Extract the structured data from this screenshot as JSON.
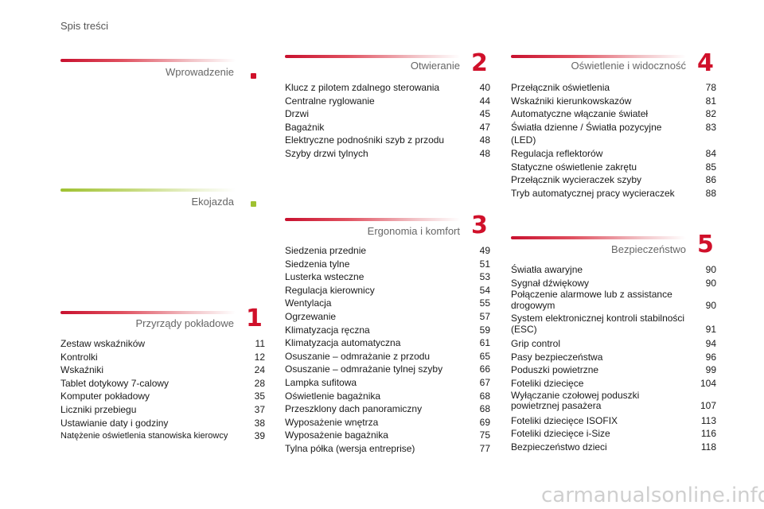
{
  "header": "Spis treści",
  "sections": {
    "intro": {
      "title": "Wprowadzenie"
    },
    "eco": {
      "title": "Ekojazda"
    },
    "s1": {
      "title": "Przyrządy pokładowe",
      "num": "1",
      "items": [
        {
          "t": "Zestaw wskaźników",
          "p": "11"
        },
        {
          "t": "Kontrolki",
          "p": "12"
        },
        {
          "t": "Wskaźniki",
          "p": "24"
        },
        {
          "t": "Tablet dotykowy 7-calowy",
          "p": "28"
        },
        {
          "t": "Komputer pokładowy",
          "p": "35"
        },
        {
          "t": "Liczniki przebiegu",
          "p": "37"
        },
        {
          "t": "Ustawianie daty i godziny",
          "p": "38"
        },
        {
          "t": "Natężenie oświetlenia stanowiska kierowcy",
          "p": "39"
        }
      ]
    },
    "s2": {
      "title": "Otwieranie",
      "num": "2",
      "items": [
        {
          "t": "Klucz z pilotem zdalnego sterowania",
          "p": "40"
        },
        {
          "t": "Centralne ryglowanie",
          "p": "44"
        },
        {
          "t": "Drzwi",
          "p": "45"
        },
        {
          "t": "Bagażnik",
          "p": "47"
        },
        {
          "t": "Elektryczne podnośniki szyb z przodu",
          "p": "48"
        },
        {
          "t": "Szyby drzwi tylnych",
          "p": "48"
        }
      ]
    },
    "s3": {
      "title": "Ergonomia i komfort",
      "num": "3",
      "items": [
        {
          "t": "Siedzenia przednie",
          "p": "49"
        },
        {
          "t": "Siedzenia tylne",
          "p": "51"
        },
        {
          "t": "Lusterka wsteczne",
          "p": "53"
        },
        {
          "t": "Regulacja kierownicy",
          "p": "54"
        },
        {
          "t": "Wentylacja",
          "p": "55"
        },
        {
          "t": "Ogrzewanie",
          "p": "57"
        },
        {
          "t": "Klimatyzacja ręczna",
          "p": "59"
        },
        {
          "t": "Klimatyzacja automatyczna",
          "p": "61"
        },
        {
          "t": "Osuszanie – odmrażanie z przodu",
          "p": "65"
        },
        {
          "t": "Osuszanie – odmrażanie tylnej szyby",
          "p": "66"
        },
        {
          "t": "Lampka sufitowa",
          "p": "67"
        },
        {
          "t": "Oświetlenie bagażnika",
          "p": "68"
        },
        {
          "t": "Przeszklony dach panoramiczny",
          "p": "68"
        },
        {
          "t": "Wyposażenie wnętrza",
          "p": "69"
        },
        {
          "t": "Wyposażenie bagażnika",
          "p": "75"
        },
        {
          "t": "Tylna półka (wersja entreprise)",
          "p": "77"
        }
      ]
    },
    "s4": {
      "title": "Oświetlenie i widoczność",
      "num": "4",
      "items": [
        {
          "t": "Przełącznik oświetlenia",
          "p": "78"
        },
        {
          "t": "Wskaźniki kierunkowskazów",
          "p": "81"
        },
        {
          "t": "Automatyczne włączanie świateł",
          "p": "82"
        },
        {
          "t": "Światła dzienne / Światła pozycyjne (LED)",
          "p": "83"
        },
        {
          "t": "Regulacja reflektorów",
          "p": "84"
        },
        {
          "t": "Statyczne oświetlenie zakrętu",
          "p": "85"
        },
        {
          "t": "Przełącznik wycieraczek szyby",
          "p": "86"
        },
        {
          "t": "Tryb automatycznej pracy wycieraczek",
          "p": "88"
        }
      ]
    },
    "s5": {
      "title": "Bezpieczeństwo",
      "num": "5",
      "items": [
        {
          "t": "Światła awaryjne",
          "p": "90"
        },
        {
          "t": "Sygnał dźwiękowy",
          "p": "90"
        },
        {
          "t": "Połączenie alarmowe lub z assistance drogowym",
          "p": "90"
        },
        {
          "t": "System elektronicznej kontroli stabilności (ESC)",
          "p": "91"
        },
        {
          "t": "Grip control",
          "p": "94"
        },
        {
          "t": "Pasy bezpieczeństwa",
          "p": "96"
        },
        {
          "t": "Poduszki powietrzne",
          "p": "99"
        },
        {
          "t": "Foteliki dziecięce",
          "p": "104"
        },
        {
          "t": "Wyłączanie czołowej poduszki powietrznej pasażera",
          "p": "107"
        },
        {
          "t": "Foteliki dziecięce ISOFIX",
          "p": "113"
        },
        {
          "t": "Foteliki dziecięce i-Size",
          "p": "116"
        },
        {
          "t": "Bezpieczeństwo dzieci",
          "p": "118"
        }
      ]
    }
  },
  "watermark": "carmanualsonline.info",
  "colors": {
    "accent": "#d0102a",
    "eco": "#9fc131"
  }
}
